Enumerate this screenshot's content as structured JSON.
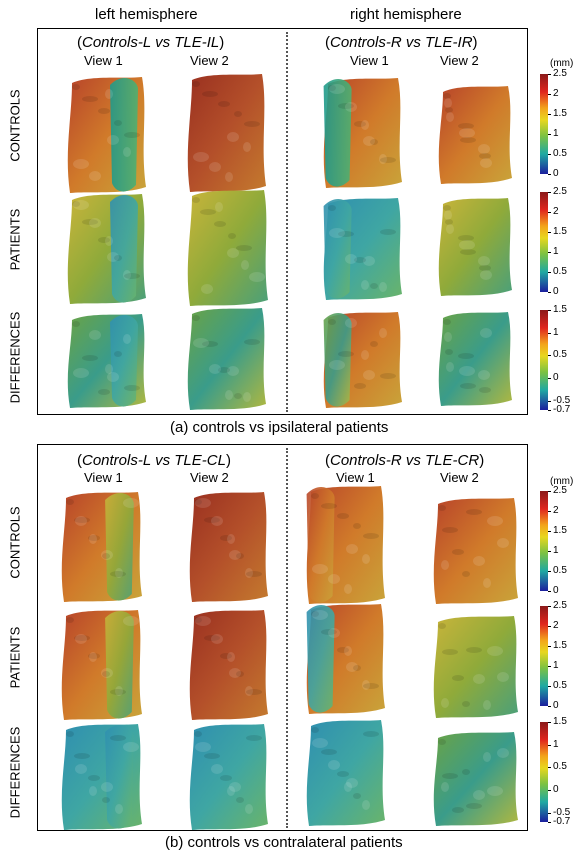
{
  "header": {
    "left": "left hemisphere",
    "right": "right hemisphere"
  },
  "panel_a": {
    "left_title_prefix": "(",
    "left_title_italic": "Controls-L vs TLE-IL",
    "left_title_suffix": ")",
    "right_title_prefix": "(",
    "right_title_italic": "Controls-R vs TLE-IR",
    "right_title_suffix": ")",
    "views": [
      "View 1",
      "View 2",
      "View 1",
      "View 2"
    ],
    "rows": [
      "CONTROLS",
      "PATIENTS",
      "DIFFERENCES"
    ],
    "caption": "(a) controls vs ipsilateral patients"
  },
  "panel_b": {
    "left_title_prefix": "(",
    "left_title_italic": "Controls-L vs TLE-CL",
    "left_title_suffix": ")",
    "right_title_prefix": "(",
    "right_title_italic": "Controls-R vs TLE-CR",
    "right_title_suffix": ")",
    "views": [
      "View 1",
      "View 2",
      "View 1",
      "View 2"
    ],
    "rows": [
      "CONTROLS",
      "PATIENTS",
      "DIFFERENCES"
    ],
    "caption": "(b) controls vs contralateral patients"
  },
  "colorbars": {
    "unit": "(mm)",
    "thickness_ticks": [
      "2.5",
      "2",
      "1.5",
      "1",
      "0.5",
      "0"
    ],
    "difference_ticks": [
      "1.5",
      "1",
      "0.5",
      "0",
      "-0.5",
      "-0.7"
    ]
  },
  "colors": {
    "controls_fill": "#c0622a",
    "patients_fill": "#8faa3a",
    "diff_fill": "#6b9a55",
    "contra_diff_fill": "#3fa6a3"
  }
}
